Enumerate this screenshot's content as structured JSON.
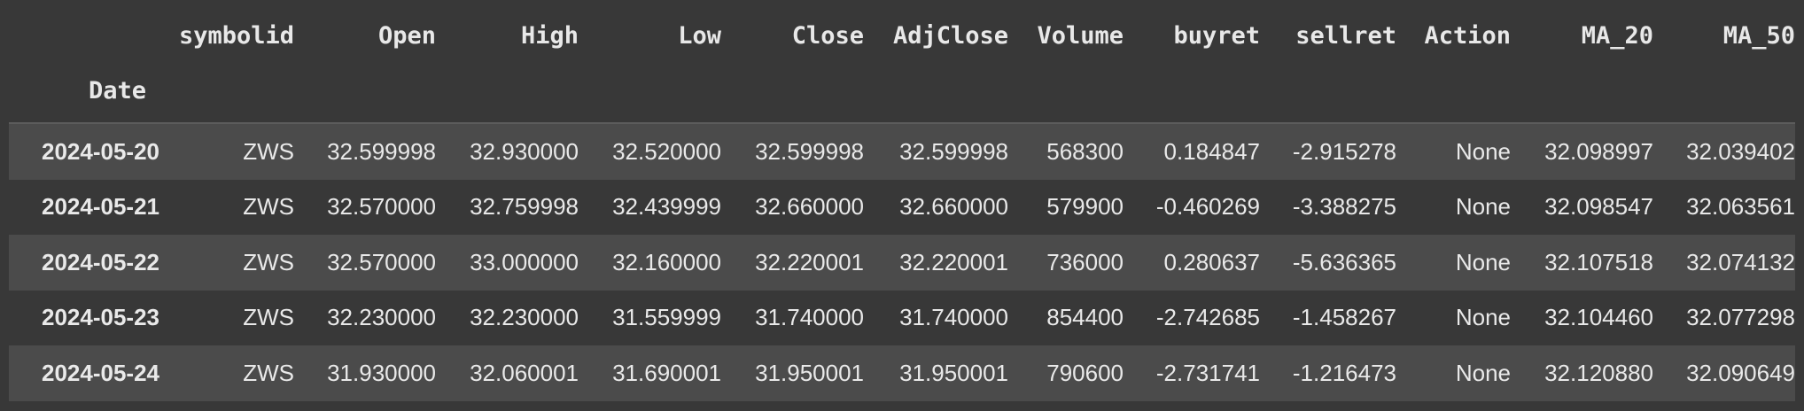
{
  "table": {
    "columns": [
      "symbolid",
      "Open",
      "High",
      "Low",
      "Close",
      "AdjClose",
      "Volume",
      "buyret",
      "sellret",
      "Action",
      "MA_20",
      "MA_50"
    ],
    "index_name": "Date",
    "rows": [
      {
        "index": "2024-05-20",
        "cells": [
          "ZWS",
          "32.599998",
          "32.930000",
          "32.520000",
          "32.599998",
          "32.599998",
          "568300",
          "0.184847",
          "-2.915278",
          "None",
          "32.098997",
          "32.039402"
        ]
      },
      {
        "index": "2024-05-21",
        "cells": [
          "ZWS",
          "32.570000",
          "32.759998",
          "32.439999",
          "32.660000",
          "32.660000",
          "579900",
          "-0.460269",
          "-3.388275",
          "None",
          "32.098547",
          "32.063561"
        ]
      },
      {
        "index": "2024-05-22",
        "cells": [
          "ZWS",
          "32.570000",
          "33.000000",
          "32.160000",
          "32.220001",
          "32.220001",
          "736000",
          "0.280637",
          "-5.636365",
          "None",
          "32.107518",
          "32.074132"
        ]
      },
      {
        "index": "2024-05-23",
        "cells": [
          "ZWS",
          "32.230000",
          "32.230000",
          "31.559999",
          "31.740000",
          "31.740000",
          "854400",
          "-2.742685",
          "-1.458267",
          "None",
          "32.104460",
          "32.077298"
        ]
      },
      {
        "index": "2024-05-24",
        "cells": [
          "ZWS",
          "31.930000",
          "32.060001",
          "31.690001",
          "31.950001",
          "31.950001",
          "790600",
          "-2.731741",
          "-1.216473",
          "None",
          "32.120880",
          "32.090649"
        ]
      }
    ]
  },
  "colors": {
    "background": "#383838",
    "stripe": "#4b4b4b",
    "text": "#e6e6e6",
    "header_rule": "#5c5c5c"
  }
}
